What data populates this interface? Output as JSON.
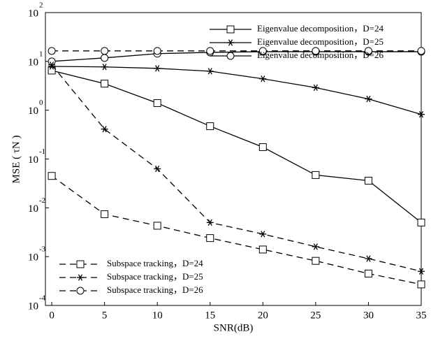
{
  "chart_data": {
    "type": "line",
    "log_y": true,
    "xlabel": "SNR(dB)",
    "ylabel": "MSE ( τN )",
    "xlim": [
      -0.6,
      35
    ],
    "xticks": [
      0,
      5,
      10,
      15,
      20,
      25,
      30,
      35
    ],
    "ylim": [
      0.0001,
      100
    ],
    "yticks": [
      {
        "value": 0.0001,
        "label": "10",
        "exponent": "-4"
      },
      {
        "value": 0.001,
        "label": "10",
        "exponent": "-3"
      },
      {
        "value": 0.01,
        "label": "10",
        "exponent": "-2"
      },
      {
        "value": 0.1,
        "label": "10",
        "exponent": "-1"
      },
      {
        "value": 1,
        "label": "10",
        "exponent": "0"
      },
      {
        "value": 10,
        "label": "10",
        "exponent": "1"
      },
      {
        "value": 100,
        "label": "10",
        "exponent": "2"
      }
    ],
    "x": [
      0,
      5,
      10,
      15,
      20,
      25,
      30,
      35
    ],
    "series": [
      {
        "name": "Eigenvalue decomposition，D=24",
        "color": "#000000",
        "marker": "square",
        "dashed": false,
        "legend": "upper right",
        "values": [
          6.5,
          3.5,
          1.4,
          0.47,
          0.175,
          0.047,
          0.036,
          0.005
        ]
      },
      {
        "name": "Eigenvalue decomposition，D=25",
        "color": "#000000",
        "marker": "star",
        "dashed": false,
        "legend": "upper right",
        "values": [
          7.9,
          7.7,
          7.2,
          6.3,
          4.4,
          2.9,
          1.7,
          0.82
        ]
      },
      {
        "name": "Eigenvalue decomposition，D=26",
        "color": "#000000",
        "marker": "circle",
        "dashed": false,
        "legend": "upper right",
        "values": [
          10,
          11.8,
          14.4,
          15.3,
          15.8,
          15.8,
          15.8,
          15.8
        ]
      },
      {
        "name": "Subspace tracking，D=24",
        "color": "#000000",
        "marker": "square",
        "dashed": true,
        "legend": "lower left",
        "values": [
          0.045,
          0.0074,
          0.0043,
          0.0024,
          0.0014,
          0.00082,
          0.00045,
          0.00027
        ]
      },
      {
        "name": "Subspace tracking，D=25",
        "color": "#000000",
        "marker": "star",
        "dashed": true,
        "legend": "lower left",
        "values": [
          8.5,
          0.41,
          0.063,
          0.005,
          0.0029,
          0.0016,
          0.00091,
          0.0005
        ]
      },
      {
        "name": "Subspace tracking，D=26",
        "color": "#000000",
        "marker": "circle",
        "dashed": true,
        "legend": "lower left",
        "values": [
          16.4,
          16.4,
          16.4,
          16.4,
          16.4,
          16.4,
          16.4,
          16.4
        ]
      }
    ]
  }
}
